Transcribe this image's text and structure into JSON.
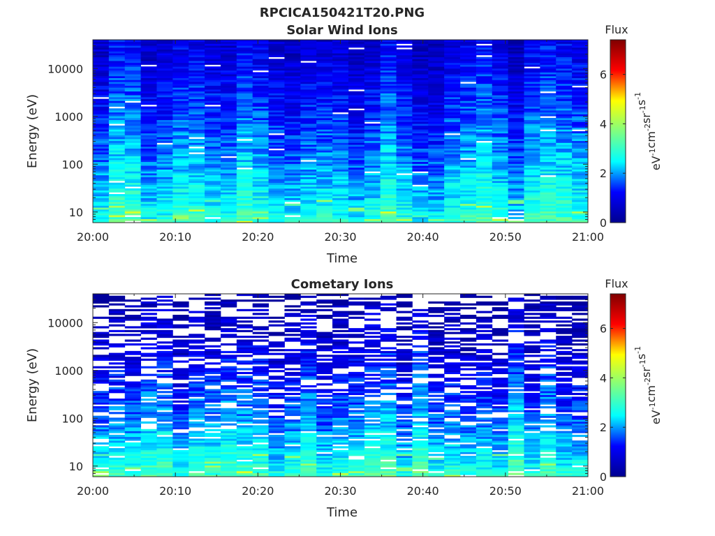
{
  "figure": {
    "title": "RPCICA150421T20.PNG",
    "colormap": [
      "#00008f",
      "#0000ff",
      "#00ffff",
      "#80ff80",
      "#ffff00",
      "#ff0000",
      "#800000"
    ]
  },
  "chart_data": [
    {
      "type": "heatmap",
      "title": "Solar Wind Ions",
      "xlabel": "Time",
      "ylabel": "Energy (eV)",
      "yscale": "log",
      "xlim": [
        "20:00",
        "21:00"
      ],
      "ylim": [
        6,
        40000
      ],
      "xticks": [
        "20:00",
        "20:10",
        "20:20",
        "20:30",
        "20:40",
        "20:50",
        "21:00"
      ],
      "yticks": [
        10,
        100,
        1000,
        10000
      ],
      "ytick_labels": [
        "10",
        "100",
        "1000",
        "10000"
      ],
      "n_time_bins": 31,
      "n_energy_bins": 96,
      "colorbar": {
        "label": "Flux",
        "units": "eV-1 cm-2 sr-1 s-1",
        "range": [
          0,
          7.4
        ],
        "ticks": [
          0,
          2,
          4,
          6
        ]
      },
      "profile": {
        "high_energy_flux": 0.8,
        "low_energy_flux": 3.0,
        "empty_fraction_high": 0.02,
        "empty_fraction_low": 0.02
      }
    },
    {
      "type": "heatmap",
      "title": "Cometary Ions",
      "xlabel": "Time",
      "ylabel": "Energy (eV)",
      "yscale": "log",
      "xlim": [
        "20:00",
        "21:00"
      ],
      "ylim": [
        6,
        40000
      ],
      "xticks": [
        "20:00",
        "20:10",
        "20:20",
        "20:30",
        "20:40",
        "20:50",
        "21:00"
      ],
      "yticks": [
        10,
        100,
        1000,
        10000
      ],
      "ytick_labels": [
        "10",
        "100",
        "1000",
        "10000"
      ],
      "n_time_bins": 31,
      "n_energy_bins": 96,
      "colorbar": {
        "label": "Flux",
        "units": "eV-1 cm-2 sr-1 s-1",
        "range": [
          0,
          7.4
        ],
        "ticks": [
          0,
          2,
          4,
          6
        ]
      },
      "profile": {
        "high_energy_flux": 0.3,
        "low_energy_flux": 3.2,
        "empty_fraction_high": 0.6,
        "empty_fraction_low": 0.05
      }
    }
  ]
}
